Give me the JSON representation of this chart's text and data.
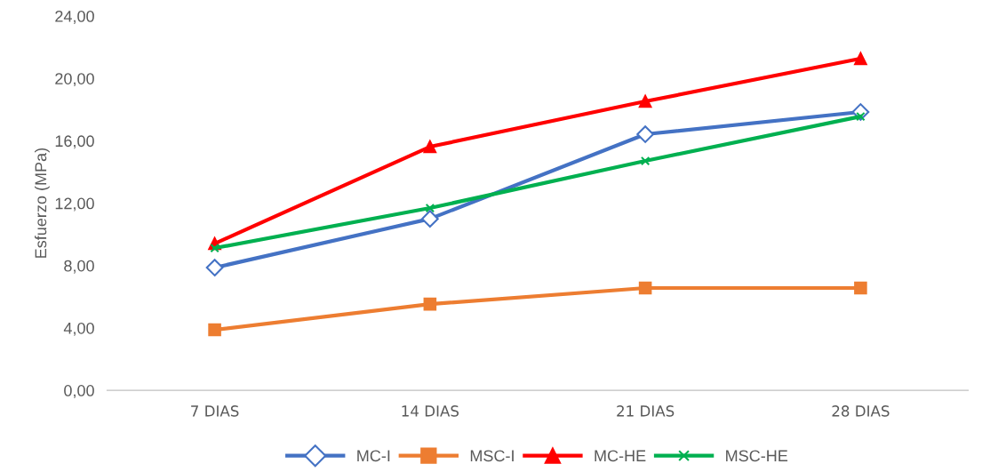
{
  "chart_data": {
    "type": "line",
    "ylabel": "Esfuerzo (MPa)",
    "categories": [
      "7 DIAS",
      "14 DIAS",
      "21 DIAS",
      "28 DIAS"
    ],
    "series": [
      {
        "name": "MC-I",
        "color": "#4472c4",
        "marker": "diamond",
        "values": [
          7.87,
          11.0,
          16.42,
          17.85
        ]
      },
      {
        "name": "MSC-I",
        "color": "#ed7d31",
        "marker": "square",
        "values": [
          3.88,
          5.53,
          6.56,
          6.56
        ]
      },
      {
        "name": "MC-HE",
        "color": "#ff0000",
        "marker": "triangle",
        "values": [
          9.41,
          15.62,
          18.53,
          21.27
        ]
      },
      {
        "name": "MSC-HE",
        "color": "#00b050",
        "marker": "cross",
        "values": [
          9.12,
          11.69,
          14.71,
          17.56
        ]
      }
    ],
    "ylim": [
      0,
      24
    ],
    "yticks": [
      {
        "value": 0,
        "label": "0,00"
      },
      {
        "value": 4,
        "label": "4,00"
      },
      {
        "value": 8,
        "label": "8,00"
      },
      {
        "value": 12,
        "label": "12,00"
      },
      {
        "value": 16,
        "label": "16,00"
      },
      {
        "value": 20,
        "label": "20,00"
      },
      {
        "value": 24,
        "label": "24,00"
      }
    ],
    "grid": false,
    "legend": "bottom",
    "line_style": "solid"
  }
}
